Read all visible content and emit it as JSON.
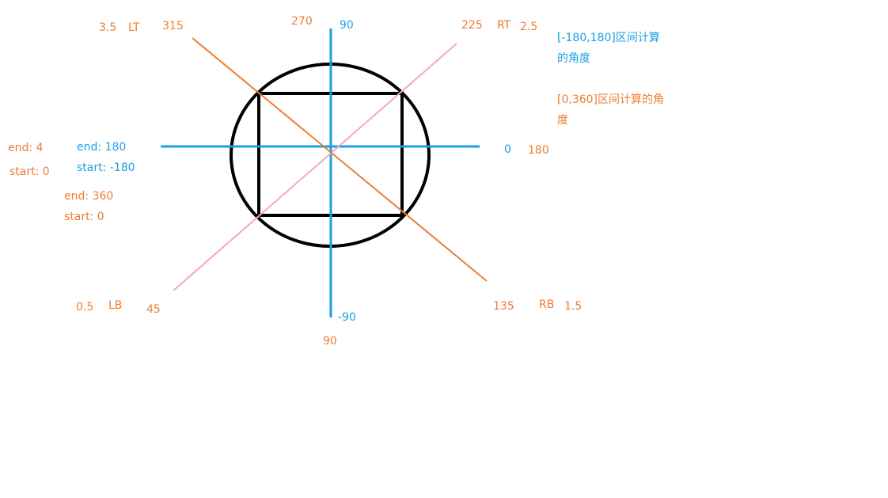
{
  "colors": {
    "orange": "#ed7d31",
    "blue": "#1ba1e2",
    "pink": "#f4a6c8",
    "black": "#000000"
  },
  "corners": {
    "lt": {
      "value": "3.5",
      "name": "LT",
      "angle": "315"
    },
    "rt": {
      "value": "2.5",
      "name": "RT",
      "angle": "225"
    },
    "lb": {
      "value": "0.5",
      "name": "LB",
      "angle": "45"
    },
    "rb": {
      "value": "1.5",
      "name": "RB",
      "angle": "135"
    }
  },
  "axis_labels": {
    "top_orange": "270",
    "top_blue": "90",
    "right_blue": "0",
    "right_orange": "180",
    "bottom_blue": "-90",
    "bottom_orange": "90"
  },
  "left_labels": {
    "orange_end4": "end: 4",
    "orange_start0": "start: 0",
    "blue_end": "end: 180",
    "blue_start": "start: -180",
    "orange_end360": "end: 360",
    "orange_start360": "start: 0"
  },
  "legend": {
    "blue_line1": "[-180,180]区间计算",
    "blue_line2": "的角度",
    "orange_line1": "[0,360]区间计算的角",
    "orange_line2": "度"
  }
}
